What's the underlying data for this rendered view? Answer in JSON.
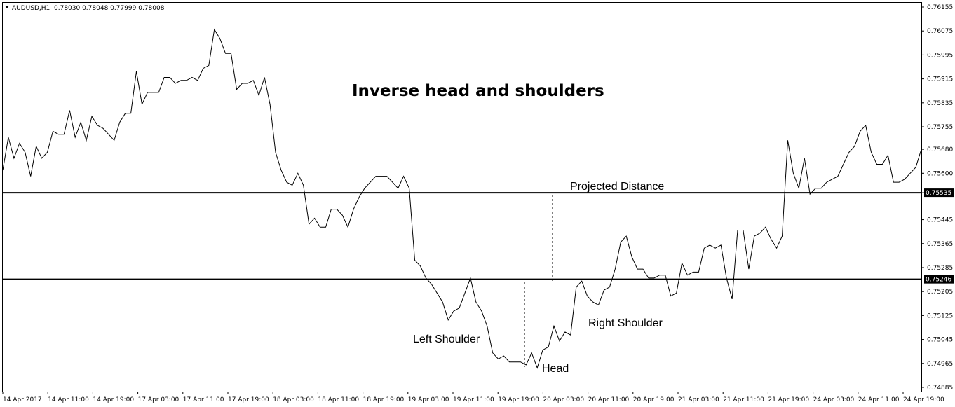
{
  "header": {
    "symbol": "AUDUSD,H1",
    "ohlc": "0.78030 0.78048 0.77999 0.78008"
  },
  "chart_data": {
    "type": "line",
    "title": "Inverse head and shoulders",
    "y_ticks": [
      "0.76155",
      "0.76075",
      "0.75995",
      "0.75915",
      "0.75835",
      "0.75755",
      "0.75680",
      "0.75600",
      "0.75535",
      "0.75445",
      "0.75365",
      "0.75285",
      "0.75205",
      "0.75125",
      "0.75045",
      "0.74965",
      "0.74885"
    ],
    "ylim": [
      0.74885,
      0.76155
    ],
    "x_ticks": [
      "14 Apr 2017",
      "14 Apr 11:00",
      "14 Apr 19:00",
      "17 Apr 03:00",
      "17 Apr 11:00",
      "17 Apr 19:00",
      "18 Apr 03:00",
      "18 Apr 11:00",
      "18 Apr 19:00",
      "19 Apr 03:00",
      "19 Apr 11:00",
      "19 Apr 19:00",
      "20 Apr 03:00",
      "20 Apr 11:00",
      "20 Apr 19:00",
      "21 Apr 03:00",
      "21 Apr 11:00",
      "21 Apr 19:00",
      "24 Apr 03:00",
      "24 Apr 11:00",
      "24 Apr 19:00"
    ],
    "x_start": "14 Apr 2017 00:00",
    "bar_interval": "1 hour",
    "levels": [
      {
        "label": "0.75535",
        "value": 0.75535
      },
      {
        "label": "0.75246",
        "value": 0.75246
      }
    ],
    "series": [
      {
        "values": [
          0.7561,
          0.7572,
          0.7565,
          0.757,
          0.7567,
          0.7559,
          0.7569,
          0.7565,
          0.7567,
          0.7574,
          0.7573,
          0.7573,
          0.7581,
          0.7572,
          0.7577,
          0.7571,
          0.7579,
          0.7576,
          0.7575,
          0.7573,
          0.7571,
          0.7577,
          0.758,
          0.758,
          0.7594,
          0.7583,
          0.7587,
          0.7587,
          0.7587,
          0.7592,
          0.7592,
          0.759,
          0.7591,
          0.7591,
          0.7592,
          0.7591,
          0.7595,
          0.7596,
          0.7608,
          0.7605,
          0.76,
          0.76,
          0.7588,
          0.759,
          0.759,
          0.7591,
          0.7586,
          0.7592,
          0.7583,
          0.7567,
          0.7561,
          0.7557,
          0.7556,
          0.756,
          0.7556,
          0.7543,
          0.7545,
          0.7542,
          0.7542,
          0.7548,
          0.7548,
          0.7546,
          0.7542,
          0.7548,
          0.7552,
          0.7555,
          0.7557,
          0.7559,
          0.7559,
          0.7559,
          0.7557,
          0.7555,
          0.7559,
          0.7555,
          0.7531,
          0.7529,
          0.7525,
          0.7523,
          0.752,
          0.7517,
          0.7511,
          0.7514,
          0.7515,
          0.752,
          0.7525,
          0.7517,
          0.7514,
          0.7509,
          0.75,
          0.7498,
          0.7499,
          0.7497,
          0.7497,
          0.7497,
          0.7496,
          0.75,
          0.7495,
          0.7501,
          0.7502,
          0.7509,
          0.7504,
          0.7507,
          0.7506,
          0.7522,
          0.7524,
          0.7519,
          0.7517,
          0.7516,
          0.7521,
          0.7522,
          0.7528,
          0.7537,
          0.7539,
          0.7532,
          0.7528,
          0.7528,
          0.7525,
          0.7525,
          0.7526,
          0.7526,
          0.7519,
          0.752,
          0.753,
          0.7526,
          0.7527,
          0.7527,
          0.7535,
          0.7536,
          0.7535,
          0.7536,
          0.7525,
          0.7518,
          0.7541,
          0.7541,
          0.7528,
          0.7539,
          0.754,
          0.7542,
          0.7538,
          0.7535,
          0.7539,
          0.7571,
          0.756,
          0.7555,
          0.7565,
          0.7553,
          0.7555,
          0.7555,
          0.7557,
          0.7558,
          0.7559,
          0.7563,
          0.7567,
          0.7569,
          0.7574,
          0.7576,
          0.7567,
          0.7563,
          0.7563,
          0.7566,
          0.7557,
          0.7557,
          0.7558,
          0.756,
          0.7562,
          0.7568
        ]
      }
    ],
    "annotations": [
      "Projected Distance",
      "Left Shoulder",
      "Right Shoulder",
      "Head"
    ],
    "grid": false
  }
}
